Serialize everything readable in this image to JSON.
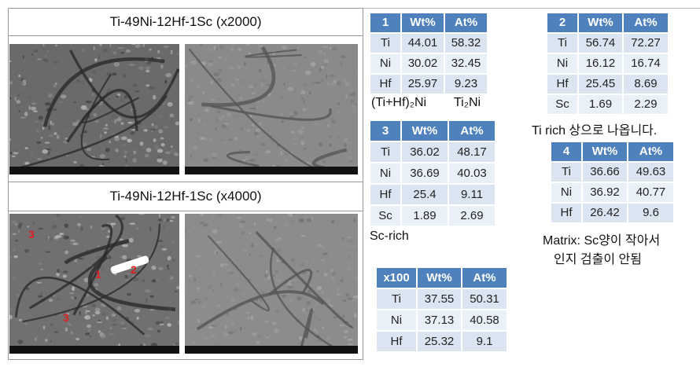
{
  "panels": [
    {
      "title": "Ti-49Ni-12Hf-1Sc (x2000)"
    },
    {
      "title": "Ti-49Ni-12Hf-1Sc (x4000)",
      "markers": [
        "3",
        "1",
        "2",
        "3"
      ]
    }
  ],
  "tables": [
    {
      "header": [
        "1",
        "Wt%",
        "At%"
      ],
      "rows": [
        [
          "Ti",
          "44.01",
          "58.32"
        ],
        [
          "Ni",
          "30.02",
          "32.45"
        ],
        [
          "Hf",
          "25.97",
          "9.23"
        ]
      ],
      "notes": [
        "(Ti+Hf)₂Ni",
        "Ti₂Ni"
      ]
    },
    {
      "header": [
        "2",
        "Wt%",
        "At%"
      ],
      "rows": [
        [
          "Ti",
          "56.74",
          "72.27"
        ],
        [
          "Ni",
          "16.12",
          "16.74"
        ],
        [
          "Hf",
          "25.45",
          "8.69"
        ],
        [
          "Sc",
          "1.69",
          "2.29"
        ]
      ],
      "notes": [
        "Ti rich 상으로 나옵니다."
      ]
    },
    {
      "header": [
        "3",
        "Wt%",
        "At%"
      ],
      "rows": [
        [
          "Ti",
          "36.02",
          "48.17"
        ],
        [
          "Ni",
          "36.69",
          "40.03"
        ],
        [
          "Hf",
          "25.4",
          "9.11"
        ],
        [
          "Sc",
          "1.89",
          "2.69"
        ]
      ],
      "notes": [
        "Sc-rich"
      ]
    },
    {
      "header": [
        "4",
        "Wt%",
        "At%"
      ],
      "rows": [
        [
          "Ti",
          "36.66",
          "49.63"
        ],
        [
          "Ni",
          "36.92",
          "40.77"
        ],
        [
          "Hf",
          "26.42",
          "9.6"
        ]
      ],
      "notes": [
        "Matrix: Sc양이 작아서",
        "인지 검출이 안됨"
      ]
    },
    {
      "header": [
        "x100",
        "Wt%",
        "At%"
      ],
      "rows": [
        [
          "Ti",
          "37.55",
          "50.31"
        ],
        [
          "Ni",
          "37.13",
          "40.58"
        ],
        [
          "Hf",
          "25.32",
          "9.1"
        ]
      ]
    }
  ]
}
